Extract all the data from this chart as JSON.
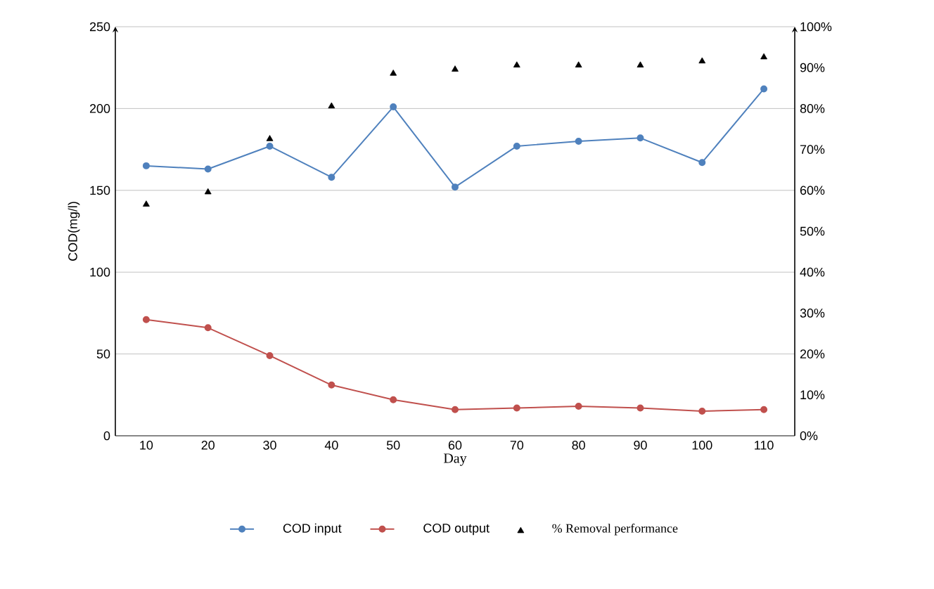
{
  "chart_data": {
    "type": "line",
    "xlabel": "Day",
    "ylabel": "COD(mg/l)",
    "categories": [
      "10",
      "20",
      "30",
      "40",
      "50",
      "60",
      "70",
      "80",
      "90",
      "100",
      "110"
    ],
    "series": [
      {
        "name": "COD input",
        "color": "#4f81bd",
        "values": [
          165,
          163,
          177,
          158,
          201,
          152,
          177,
          180,
          182,
          167,
          212
        ]
      },
      {
        "name": "COD output",
        "color": "#c0504d",
        "values": [
          71,
          66,
          49,
          31,
          22,
          16,
          17,
          18,
          17,
          15,
          16
        ]
      },
      {
        "name": "% Removal performance",
        "type": "scatter",
        "marker": "triangle",
        "axis": "y2",
        "color": "#000000",
        "values": [
          57,
          60,
          73,
          81,
          89,
          90,
          91,
          91,
          91,
          92,
          93
        ]
      }
    ],
    "ylim": [
      0,
      250
    ],
    "yticks": [
      0,
      50,
      100,
      150,
      200,
      250
    ],
    "y2lim": [
      0,
      100
    ],
    "y2ticks": [
      {
        "value": 0,
        "label": "0%"
      },
      {
        "value": 10,
        "label": "10%"
      },
      {
        "value": 20,
        "label": "20%"
      },
      {
        "value": 30,
        "label": "30%"
      },
      {
        "value": 40,
        "label": "40%"
      },
      {
        "value": 50,
        "label": "50%"
      },
      {
        "value": 60,
        "label": "60%"
      },
      {
        "value": 70,
        "label": "70%"
      },
      {
        "value": 80,
        "label": "80%"
      },
      {
        "value": 90,
        "label": "90%"
      },
      {
        "value": 100,
        "label": "100%"
      }
    ],
    "grid": "y",
    "legend": "bottom",
    "marker": "circle",
    "line_style": "solid"
  }
}
